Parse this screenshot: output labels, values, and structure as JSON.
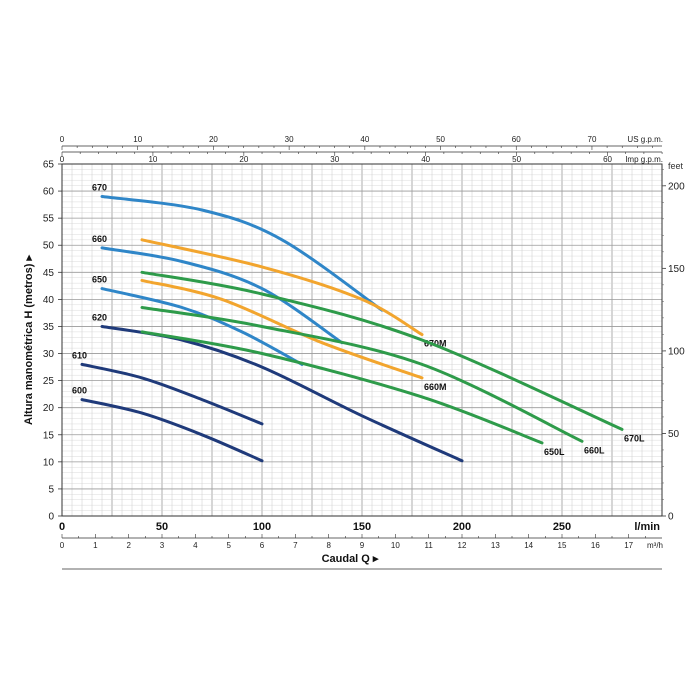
{
  "chart_data": {
    "type": "line",
    "grid": true,
    "y_label": "Altura manométrica H (metros)",
    "y_arrow": "▸",
    "x_label": "Caudal Q",
    "x_arrow": "▸",
    "x_unit": "l/min",
    "xlim": [
      0,
      300
    ],
    "ylim": [
      0,
      65
    ],
    "x_ticks": [
      0,
      50,
      100,
      150,
      200,
      250
    ],
    "y_ticks": [
      0,
      5,
      10,
      15,
      20,
      25,
      30,
      35,
      40,
      45,
      50,
      55,
      60,
      65
    ],
    "m3h": {
      "unit": "m³/h",
      "ticks": [
        0,
        1,
        2,
        3,
        4,
        5,
        6,
        7,
        8,
        9,
        10,
        11,
        12,
        13,
        14,
        15,
        16,
        17
      ]
    },
    "us_gpm": {
      "unit": "US g.p.m.",
      "ticks": [
        0,
        10,
        20,
        30,
        40,
        50,
        60,
        70
      ]
    },
    "imp_gpm": {
      "unit": "Imp g.p.m.",
      "ticks": [
        0,
        10,
        20,
        30,
        40,
        50,
        60
      ]
    },
    "feet": {
      "unit": "feet",
      "ticks": [
        0,
        50,
        100,
        150,
        200
      ]
    },
    "series": [
      {
        "name": "600",
        "color": "#1f3a7a",
        "points": [
          [
            10,
            21.5
          ],
          [
            40,
            19
          ],
          [
            70,
            15
          ],
          [
            100,
            10.2
          ]
        ]
      },
      {
        "name": "610",
        "color": "#1f3a7a",
        "points": [
          [
            10,
            28
          ],
          [
            40,
            25.5
          ],
          [
            70,
            21.5
          ],
          [
            100,
            17
          ]
        ]
      },
      {
        "name": "620",
        "color": "#1f3a7a",
        "points": [
          [
            20,
            35
          ],
          [
            60,
            32.5
          ],
          [
            100,
            27.5
          ],
          [
            150,
            18.5
          ],
          [
            200,
            10.2
          ]
        ]
      },
      {
        "name": "650",
        "color": "#2f86c8",
        "points": [
          [
            20,
            42
          ],
          [
            60,
            38.5
          ],
          [
            90,
            34
          ],
          [
            120,
            28
          ]
        ]
      },
      {
        "name": "660",
        "color": "#2f86c8",
        "points": [
          [
            20,
            49.5
          ],
          [
            60,
            47
          ],
          [
            100,
            42
          ],
          [
            140,
            32
          ]
        ]
      },
      {
        "name": "670",
        "color": "#2f86c8",
        "points": [
          [
            20,
            59
          ],
          [
            70,
            56.5
          ],
          [
            110,
            51
          ],
          [
            160,
            38
          ]
        ]
      },
      {
        "name": "660M",
        "color": "#f2a52e",
        "points": [
          [
            40,
            43.5
          ],
          [
            80,
            40
          ],
          [
            130,
            32
          ],
          [
            180,
            25.5
          ]
        ]
      },
      {
        "name": "670M",
        "color": "#f2a52e",
        "points": [
          [
            40,
            51
          ],
          [
            100,
            46
          ],
          [
            150,
            40
          ],
          [
            180,
            33.5
          ]
        ]
      },
      {
        "name": "650L",
        "color": "#2e9b4a",
        "points": [
          [
            40,
            34
          ],
          [
            100,
            30
          ],
          [
            180,
            22
          ],
          [
            240,
            13.5
          ]
        ]
      },
      {
        "name": "660L",
        "color": "#2e9b4a",
        "points": [
          [
            40,
            38.5
          ],
          [
            100,
            35
          ],
          [
            180,
            28
          ],
          [
            260,
            13.8
          ]
        ]
      },
      {
        "name": "670L",
        "color": "#2e9b4a",
        "points": [
          [
            40,
            45
          ],
          [
            100,
            41
          ],
          [
            180,
            32.5
          ],
          [
            280,
            16
          ]
        ]
      }
    ]
  }
}
